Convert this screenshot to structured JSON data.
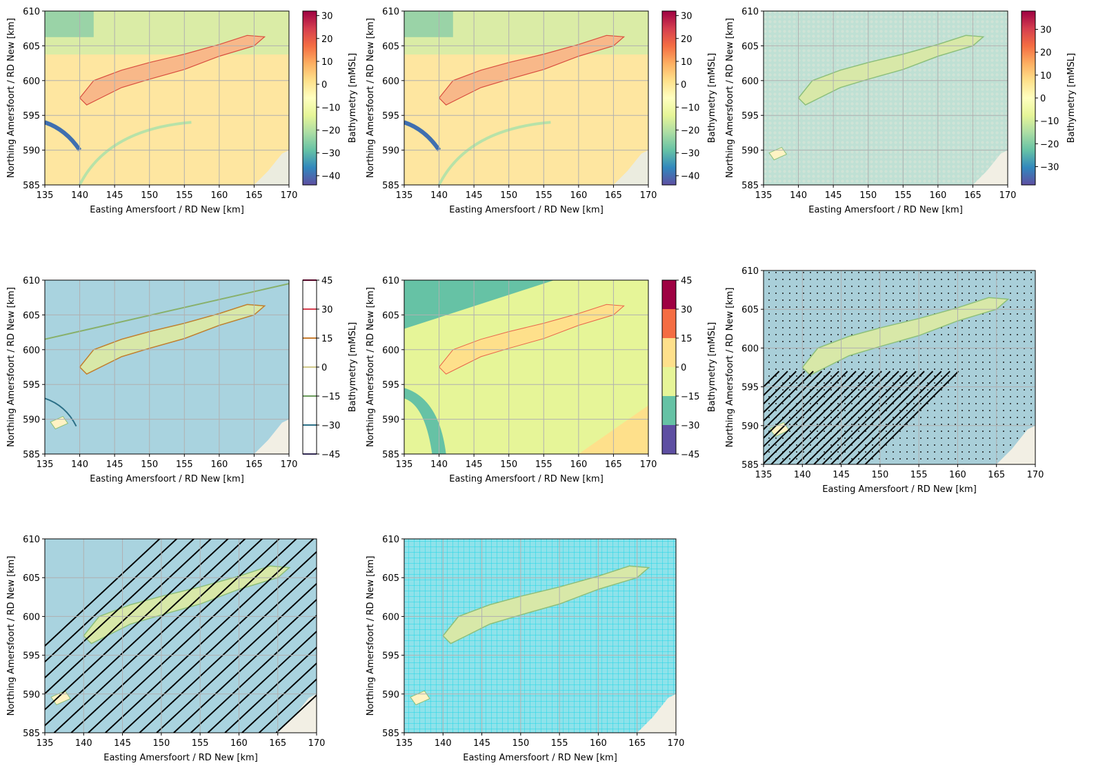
{
  "figure": {
    "xlabel": "Easting Amersfoort / RD New [km]",
    "ylabel": "Northing Amersfoort / RD New [km]",
    "colorbar_label": "Bathymetry [mMSL]",
    "xticks": [
      135,
      140,
      145,
      150,
      155,
      160,
      165,
      170
    ],
    "yticks": [
      585,
      590,
      595,
      600,
      605,
      610
    ],
    "colors": {
      "sea": "#a9d3df",
      "land": "#f2efe4",
      "island": "#d8e8a8",
      "grid_line": "#b0b0b0",
      "vector": "#000000",
      "mesh_cyan": "#00e5ee"
    }
  },
  "chart_data": [
    {
      "id": "panel-1",
      "type": "heatmap",
      "description": "Continuous bathymetry raster",
      "xlim": [
        135,
        170
      ],
      "ylim": [
        585,
        610
      ],
      "grid": true,
      "colormap": "Spectral_r",
      "colorbar": {
        "vmin": -44,
        "vmax": 32,
        "ticks": [
          30,
          20,
          10,
          0,
          -10,
          -20,
          -30,
          -40
        ],
        "label": "Bathymetry [mMSL]"
      },
      "colorbar_tick_labels": [
        "30",
        "20",
        "10",
        "0",
        "−10",
        "−20",
        "−30",
        "−40"
      ]
    },
    {
      "id": "panel-2",
      "type": "heatmap",
      "description": "Continuous bathymetry raster (duplicate rendering)",
      "xlim": [
        135,
        170
      ],
      "ylim": [
        585,
        610
      ],
      "grid": true,
      "colormap": "Spectral_r",
      "colorbar": {
        "vmin": -44,
        "vmax": 32,
        "ticks": [
          30,
          20,
          10,
          0,
          -10,
          -20,
          -30,
          -40
        ],
        "label": "Bathymetry [mMSL]"
      },
      "colorbar_tick_labels": [
        "30",
        "20",
        "10",
        "0",
        "−10",
        "−20",
        "−30",
        "−40"
      ]
    },
    {
      "id": "panel-3",
      "type": "scatter",
      "description": "Bathymetry point samples over basemap",
      "xlim": [
        135,
        170
      ],
      "ylim": [
        585,
        610
      ],
      "grid": true,
      "colormap": "Spectral_r",
      "colorbar": {
        "vmin": -38,
        "vmax": 38,
        "ticks": [
          30,
          20,
          10,
          0,
          -10,
          -20,
          -30
        ],
        "label": "Bathymetry [mMSL]"
      },
      "colorbar_tick_labels": [
        "30",
        "20",
        "10",
        "0",
        "−10",
        "−20",
        "−30"
      ]
    },
    {
      "id": "panel-4",
      "type": "contour",
      "description": "Bathymetry contour lines over basemap",
      "xlim": [
        135,
        170
      ],
      "ylim": [
        585,
        610
      ],
      "grid": true,
      "levels": [
        45,
        30,
        15,
        0,
        -15,
        -30,
        -45
      ],
      "level_colors": [
        "#9e0142",
        "#d53e4f",
        "#c77c2e",
        "#d0c88a",
        "#6a9a5a",
        "#2b6f86",
        "#5e4fa2"
      ],
      "colorbar": {
        "vmin": -45,
        "vmax": 45,
        "ticks": [
          45,
          30,
          15,
          0,
          -15,
          -30,
          -45
        ],
        "label": "Bathymetry [mMSL]"
      },
      "colorbar_tick_labels": [
        "45",
        "30",
        "15",
        "0",
        "−15",
        "−30",
        "−45"
      ]
    },
    {
      "id": "panel-5",
      "type": "contourf",
      "description": "Filled bathymetry contours",
      "xlim": [
        135,
        170
      ],
      "ylim": [
        585,
        610
      ],
      "grid": true,
      "levels": [
        -45,
        -30,
        -15,
        0,
        15,
        30,
        45
      ],
      "level_colors": [
        "#5e4fa2",
        "#66c2a5",
        "#e6f598",
        "#fee08b",
        "#f46d43",
        "#9e0142"
      ],
      "colorbar": {
        "vmin": -45,
        "vmax": 45,
        "ticks": [
          45,
          30,
          15,
          0,
          -15,
          -30,
          -45
        ],
        "label": "Bathymetry [mMSL]"
      },
      "colorbar_tick_labels": [
        "45",
        "30",
        "15",
        "0",
        "−15",
        "−30",
        "−45"
      ]
    },
    {
      "id": "panel-6",
      "type": "quiver",
      "description": "Dense vector field over basemap",
      "xlim": [
        135,
        170
      ],
      "ylim": [
        585,
        610
      ],
      "grid": true
    },
    {
      "id": "panel-7",
      "type": "streamplot",
      "description": "Diagonal streamlines (flow toward south-west) over basemap",
      "xlim": [
        135,
        170
      ],
      "ylim": [
        585,
        610
      ],
      "grid": true
    },
    {
      "id": "panel-8",
      "type": "mesh",
      "description": "Cyan curvilinear grid over basemap",
      "xlim": [
        135,
        170
      ],
      "ylim": [
        585,
        610
      ],
      "grid": true
    }
  ]
}
